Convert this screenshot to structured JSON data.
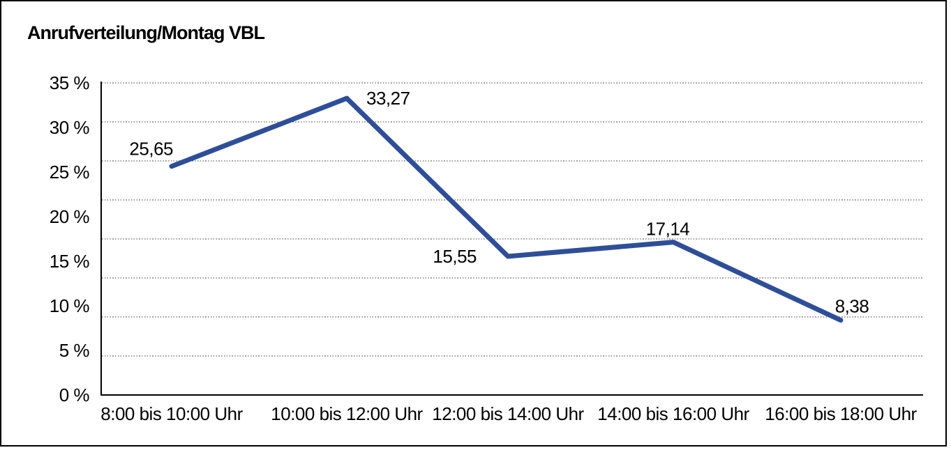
{
  "frame": {
    "background": "#ffffff",
    "border_color": "#000000"
  },
  "chart_data": {
    "type": "line",
    "title": "Anrufverteilung/Montag VBL",
    "categories": [
      "8:00 bis 10:00 Uhr",
      "10:00 bis 12:00 Uhr",
      "12:00 bis 14:00 Uhr",
      "14:00 bis 16:00 Uhr",
      "16:00 bis 18:00 Uhr"
    ],
    "values": [
      25.65,
      33.27,
      15.55,
      17.14,
      8.38
    ],
    "value_labels": [
      "25,65",
      "33,27",
      "15,55",
      "17,14",
      "8,38"
    ],
    "y_ticks": [
      {
        "value": 35,
        "label": "35 %"
      },
      {
        "value": 30,
        "label": "30 %"
      },
      {
        "value": 25,
        "label": "25 %"
      },
      {
        "value": 20,
        "label": "20 %"
      },
      {
        "value": 15,
        "label": "15 %"
      },
      {
        "value": 10,
        "label": "10 %"
      },
      {
        "value": 5,
        "label": "5 %"
      },
      {
        "value": 0,
        "label": "0 %"
      }
    ],
    "ylim": [
      0,
      35
    ],
    "y_unit": "%",
    "decimal_separator": ",",
    "xlabel": "",
    "ylabel": "",
    "grid": "horizontal dotted, 8 equal intervals",
    "legend": "none",
    "colors": {
      "line": "#2E4E97",
      "text": "#000000",
      "grid": "#404040",
      "axis": "#000000"
    }
  }
}
